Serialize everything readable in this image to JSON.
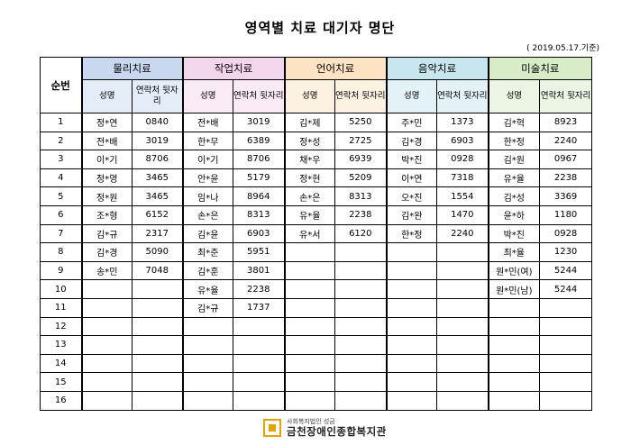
{
  "title": "영역별 치료 대기자 명단",
  "date": "( 2019.05.17.기준)",
  "seq_header": "순번",
  "col_name": "성명",
  "col_contact": "연락처 뒷자리",
  "groups": [
    {
      "label": "물리치료"
    },
    {
      "label": "작업치료"
    },
    {
      "label": "언어치료"
    },
    {
      "label": "음악치료"
    },
    {
      "label": "미술치료"
    }
  ],
  "rows": [
    {
      "n": "1",
      "c": [
        [
          "정*연",
          "0840"
        ],
        [
          "전*배",
          "3019"
        ],
        [
          "김*제",
          "5250"
        ],
        [
          "주*민",
          "1373"
        ],
        [
          "김*혁",
          "8923"
        ]
      ]
    },
    {
      "n": "2",
      "c": [
        [
          "전*배",
          "3019"
        ],
        [
          "한*무",
          "6389"
        ],
        [
          "정*성",
          "2725"
        ],
        [
          "김*경",
          "6903"
        ],
        [
          "한*정",
          "2240"
        ]
      ]
    },
    {
      "n": "3",
      "c": [
        [
          "이*기",
          "8706"
        ],
        [
          "이*기",
          "8706"
        ],
        [
          "채*우",
          "6939"
        ],
        [
          "박*진",
          "0928"
        ],
        [
          "김*원",
          "0967"
        ]
      ]
    },
    {
      "n": "4",
      "c": [
        [
          "정*영",
          "3465"
        ],
        [
          "안*윤",
          "5179"
        ],
        [
          "정*현",
          "5209"
        ],
        [
          "이*연",
          "7318"
        ],
        [
          "유*율",
          "2238"
        ]
      ]
    },
    {
      "n": "5",
      "c": [
        [
          "정*원",
          "3465"
        ],
        [
          "임*나",
          "8964"
        ],
        [
          "손*은",
          "8313"
        ],
        [
          "오*진",
          "1554"
        ],
        [
          "김*성",
          "3369"
        ]
      ]
    },
    {
      "n": "6",
      "c": [
        [
          "조*형",
          "6152"
        ],
        [
          "손*은",
          "8313"
        ],
        [
          "유*율",
          "2238"
        ],
        [
          "김*완",
          "1470"
        ],
        [
          "윤*하",
          "1180"
        ]
      ]
    },
    {
      "n": "7",
      "c": [
        [
          "김*규",
          "2317"
        ],
        [
          "김*윤",
          "6903"
        ],
        [
          "유*서",
          "6120"
        ],
        [
          "한*정",
          "2240"
        ],
        [
          "박*진",
          "0928"
        ]
      ]
    },
    {
      "n": "8",
      "c": [
        [
          "김*경",
          "5090"
        ],
        [
          "최*준",
          "5951"
        ],
        [
          "",
          ""
        ],
        [
          "",
          ""
        ],
        [
          "최*율",
          "1230"
        ]
      ]
    },
    {
      "n": "9",
      "c": [
        [
          "송*민",
          "7048"
        ],
        [
          "김*훈",
          "3801"
        ],
        [
          "",
          ""
        ],
        [
          "",
          ""
        ],
        [
          "원*민(여)",
          "5244"
        ]
      ]
    },
    {
      "n": "10",
      "c": [
        [
          "",
          ""
        ],
        [
          "유*율",
          "2238"
        ],
        [
          "",
          ""
        ],
        [
          "",
          ""
        ],
        [
          "원*민(남)",
          "5244"
        ]
      ]
    },
    {
      "n": "11",
      "c": [
        [
          "",
          ""
        ],
        [
          "김*규",
          "1737"
        ],
        [
          "",
          ""
        ],
        [
          "",
          ""
        ],
        [
          "",
          ""
        ]
      ]
    },
    {
      "n": "12",
      "c": [
        [
          "",
          ""
        ],
        [
          "",
          ""
        ],
        [
          "",
          ""
        ],
        [
          "",
          ""
        ],
        [
          "",
          ""
        ]
      ]
    },
    {
      "n": "13",
      "c": [
        [
          "",
          ""
        ],
        [
          "",
          ""
        ],
        [
          "",
          ""
        ],
        [
          "",
          ""
        ],
        [
          "",
          ""
        ]
      ]
    },
    {
      "n": "14",
      "c": [
        [
          "",
          ""
        ],
        [
          "",
          ""
        ],
        [
          "",
          ""
        ],
        [
          "",
          ""
        ],
        [
          "",
          ""
        ]
      ]
    },
    {
      "n": "15",
      "c": [
        [
          "",
          ""
        ],
        [
          "",
          ""
        ],
        [
          "",
          ""
        ],
        [
          "",
          ""
        ],
        [
          "",
          ""
        ]
      ]
    },
    {
      "n": "16",
      "c": [
        [
          "",
          ""
        ],
        [
          "",
          ""
        ],
        [
          "",
          ""
        ],
        [
          "",
          ""
        ],
        [
          "",
          ""
        ]
      ]
    }
  ],
  "footer": {
    "sub": "사회복지법인 성금",
    "name": "금천장애인종합복지관",
    "logo_icon": "org-logo-icon",
    "logo_color": "#e5a100"
  }
}
